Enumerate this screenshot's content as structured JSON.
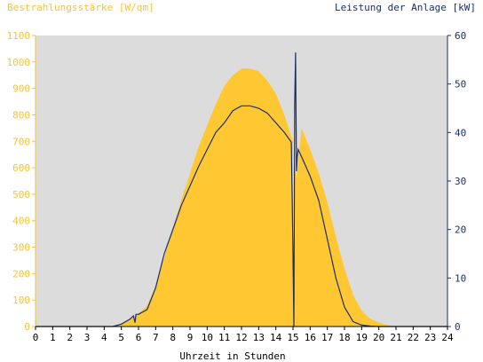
{
  "colors": {
    "irradiance": "#ffc832",
    "power": "#1a2e6c",
    "plot_bg": "#dcdcdc",
    "left_axis": "#f5c23a",
    "right_axis": "#1a2e6c"
  },
  "chart_data": {
    "type": "area",
    "title_left": "Bestrahlungsstärke [W/qm]",
    "title_right": "Leistung der Anlage [kW]",
    "xlabel": "Uhrzeit in Stunden",
    "xlim": [
      0,
      24
    ],
    "x_ticks": [
      "0",
      "1",
      "2",
      "3",
      "4",
      "5",
      "6",
      "7",
      "8",
      "9",
      "10",
      "11",
      "12",
      "13",
      "14",
      "15",
      "16",
      "17",
      "18",
      "19",
      "20",
      "21",
      "22",
      "23",
      "24"
    ],
    "y_left_lim": [
      0,
      1100
    ],
    "y_left_ticks": [
      "0",
      "100",
      "200",
      "300",
      "400",
      "500",
      "600",
      "700",
      "800",
      "900",
      "1000",
      "1100"
    ],
    "y_right_lim": [
      0,
      60
    ],
    "y_right_ticks": [
      "0",
      "10",
      "20",
      "30",
      "40",
      "50",
      "60"
    ],
    "grid": false,
    "series": [
      {
        "name": "Bestrahlungsstärke [W/qm]",
        "axis": "left",
        "type": "area",
        "x": [
          0,
          4.5,
          5,
          5.5,
          6,
          6.5,
          7,
          7.5,
          8,
          8.5,
          9,
          9.5,
          10,
          10.5,
          11,
          11.5,
          12,
          12.5,
          13,
          13.5,
          14,
          14.5,
          15,
          15.01,
          15.1,
          15.2,
          15.5,
          16,
          16.5,
          17,
          17.5,
          18,
          18.5,
          19,
          19.5,
          20,
          20.5,
          21,
          24
        ],
        "y": [
          0,
          0,
          10,
          30,
          50,
          80,
          150,
          260,
          370,
          480,
          580,
          680,
          760,
          840,
          910,
          950,
          975,
          975,
          965,
          930,
          880,
          800,
          700,
          0,
          600,
          560,
          750,
          670,
          580,
          470,
          340,
          220,
          120,
          60,
          30,
          15,
          5,
          0,
          0
        ]
      },
      {
        "name": "Leistung der Anlage [kW]",
        "axis": "right",
        "type": "line",
        "x": [
          0,
          4.5,
          5,
          5.5,
          5.7,
          5.8,
          5.85,
          6,
          6.5,
          7,
          7.5,
          8,
          8.5,
          9,
          9.5,
          10,
          10.5,
          11,
          11.5,
          12,
          12.5,
          13,
          13.5,
          14,
          14.5,
          14.9,
          15,
          15.05,
          15.1,
          15.15,
          15.2,
          15.25,
          15.3,
          15.5,
          16,
          16.5,
          17,
          17.5,
          18,
          18.5,
          19,
          19.5,
          20,
          20.5,
          24
        ],
        "y": [
          0,
          0,
          0.5,
          1.5,
          2.2,
          0.8,
          2.5,
          2.5,
          3.5,
          8,
          15,
          20,
          25,
          29,
          33,
          36.5,
          40,
          42,
          44.5,
          45.5,
          45.5,
          45,
          44,
          42,
          40,
          38,
          15,
          0,
          46,
          56.5,
          32,
          35,
          36.5,
          35,
          31,
          26,
          18,
          10,
          4,
          1,
          0.3,
          0.1,
          0,
          0,
          0
        ]
      }
    ]
  }
}
